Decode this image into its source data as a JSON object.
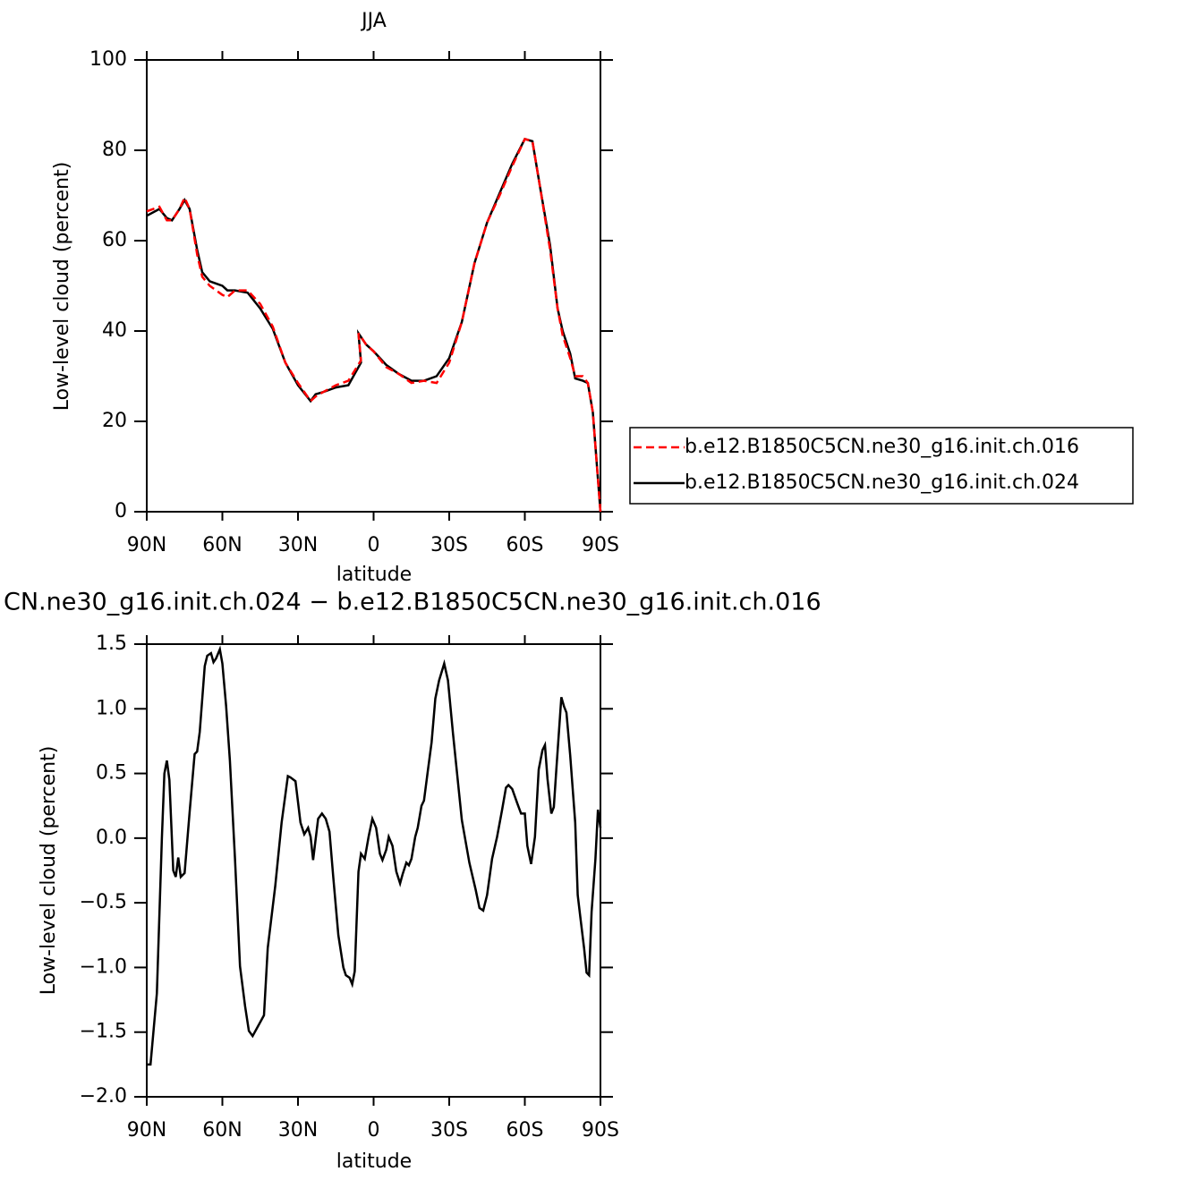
{
  "chart_data": [
    {
      "type": "line",
      "title": "JJA",
      "xlabel": "latitude",
      "ylabel": "Low-level cloud (percent)",
      "xlim": [
        90,
        -90
      ],
      "xticks": [
        {
          "value": 90,
          "label": "90N"
        },
        {
          "value": 60,
          "label": "60N"
        },
        {
          "value": 30,
          "label": "30N"
        },
        0,
        {
          "value": -30,
          "label": "30S"
        },
        {
          "value": -60,
          "label": "60S"
        },
        {
          "value": -90,
          "label": "90S"
        }
      ],
      "ylim": [
        0,
        100
      ],
      "yticks": [
        0,
        20,
        40,
        60,
        80,
        100
      ],
      "legend": "right",
      "x": [
        90,
        85,
        82,
        80,
        77,
        75,
        73,
        70,
        68,
        65,
        60,
        58,
        55,
        50,
        45,
        40,
        35,
        30,
        25,
        23,
        20,
        15,
        10,
        5,
        6,
        3,
        0,
        -5,
        -10,
        -15,
        -20,
        -25,
        -30,
        -35,
        -40,
        -45,
        -50,
        -55,
        -60,
        -63,
        -66,
        -70,
        -73,
        -75,
        -78,
        -80,
        -83,
        -85,
        -87,
        -90
      ],
      "series": [
        {
          "name": "b.e12.B1850C5CN.ne30_g16.init.ch.016",
          "color": "#ff0000",
          "line_style": "dashed",
          "values": [
            66.5,
            67.5,
            64.5,
            64.5,
            67,
            69.5,
            67,
            57,
            52,
            50,
            48,
            47.5,
            49,
            49,
            46,
            41,
            33,
            28.5,
            24.5,
            25.5,
            26.5,
            28,
            29,
            33.5,
            39.5,
            37,
            35.5,
            32,
            30.5,
            28.5,
            29,
            28.5,
            33,
            42,
            55,
            64,
            70,
            76.5,
            82.5,
            82,
            72,
            58,
            45,
            39,
            34,
            30,
            30,
            28.5,
            22,
            0
          ]
        },
        {
          "name": "b.e12.B1850C5CN.ne30_g16.init.ch.024",
          "color": "#000000",
          "line_style": "solid",
          "values": [
            65.5,
            67,
            65,
            64.5,
            67,
            69,
            67,
            58,
            53,
            51,
            50,
            49,
            49,
            48.5,
            45,
            40.5,
            33,
            28,
            24.5,
            26,
            26.5,
            27.5,
            28,
            33,
            39.5,
            37,
            35.5,
            32.5,
            30.5,
            29,
            29,
            30,
            34,
            42,
            55,
            64,
            70.5,
            77,
            82.5,
            82,
            72,
            59,
            45,
            40,
            35,
            29.5,
            29,
            28.5,
            22,
            0
          ]
        }
      ]
    },
    {
      "type": "line",
      "title": "CN.ne30_g16.init.ch.024 − b.e12.B1850C5CN.ne30_g16.init.ch.016",
      "xlabel": "latitude",
      "ylabel": "Low-level cloud (percent)",
      "xlim": [
        90,
        -90
      ],
      "xticks": [
        {
          "value": 90,
          "label": "90N"
        },
        {
          "value": 60,
          "label": "60N"
        },
        {
          "value": 30,
          "label": "30N"
        },
        0,
        {
          "value": -30,
          "label": "30S"
        },
        {
          "value": -60,
          "label": "60S"
        },
        {
          "value": -90,
          "label": "90S"
        }
      ],
      "ylim": [
        -2,
        1.5
      ],
      "yticks": [
        {
          "value": -2,
          "label": "−2.0"
        },
        {
          "value": -1.5,
          "label": "−1.5"
        },
        {
          "value": -1,
          "label": "−1.0"
        },
        {
          "value": -0.5,
          "label": "−0.5"
        },
        {
          "value": 0,
          "label": "0.0"
        },
        0.5,
        {
          "value": 1,
          "label": "1.0"
        },
        1.5
      ],
      "x": [
        90,
        88.5,
        86,
        84,
        83,
        82,
        81,
        79.5,
        78.5,
        77.5,
        76.5,
        75,
        73,
        71,
        70,
        69,
        67,
        66,
        64.5,
        63.5,
        62.5,
        61,
        60,
        58.5,
        57,
        55,
        53,
        51,
        49.5,
        48,
        46,
        43.5,
        42,
        39,
        36.5,
        34,
        33,
        31,
        29,
        27.5,
        26,
        25,
        24,
        22,
        20.5,
        19,
        17.5,
        16,
        14,
        12,
        11,
        9.5,
        8.5,
        7.5,
        6,
        5,
        3.5,
        2,
        0.5,
        -1,
        -2.5,
        -3.5,
        -5,
        -6,
        -7.5,
        -9,
        -10.5,
        -11.5,
        -13,
        -14,
        -15,
        -16.5,
        -17.5,
        -19,
        -20,
        -21.5,
        -23,
        -24.5,
        -26,
        -28,
        -29.5,
        -31.5,
        -35,
        -38,
        -40.5,
        -42,
        -43.5,
        -45,
        -47,
        -49,
        -51,
        -52.5,
        -53.5,
        -55,
        -57,
        -58.5,
        -60,
        -61,
        -62.5,
        -64,
        -65.5,
        -67,
        -68,
        -69,
        -70.5,
        -71.5,
        -72.5,
        -74,
        -74.5,
        -75.5,
        -76.5,
        -78,
        -80,
        -81,
        -82,
        -83.5,
        -84.5,
        -85.5,
        -86.5,
        -88,
        -89,
        -90
      ],
      "series": [
        {
          "color": "#000000",
          "line_style": "solid",
          "values": [
            -1.75,
            -1.75,
            -1.2,
            0.0,
            0.5,
            0.6,
            0.45,
            -0.25,
            -0.3,
            -0.15,
            -0.3,
            -0.27,
            0.2,
            0.65,
            0.67,
            0.82,
            1.33,
            1.41,
            1.43,
            1.36,
            1.39,
            1.46,
            1.35,
            1.02,
            0.6,
            -0.16,
            -0.99,
            -1.3,
            -1.49,
            -1.53,
            -1.46,
            -1.37,
            -0.85,
            -0.37,
            0.12,
            0.48,
            0.47,
            0.44,
            0.12,
            0.03,
            0.08,
            0.01,
            -0.17,
            0.15,
            0.19,
            0.15,
            0.05,
            -0.3,
            -0.75,
            -1.0,
            -1.06,
            -1.08,
            -1.13,
            -1.03,
            -0.26,
            -0.12,
            -0.16,
            0.01,
            0.15,
            0.08,
            -0.12,
            -0.17,
            -0.09,
            0.01,
            -0.06,
            -0.26,
            -0.35,
            -0.28,
            -0.19,
            -0.21,
            -0.16,
            0.01,
            0.08,
            0.25,
            0.29,
            0.52,
            0.74,
            1.08,
            1.22,
            1.35,
            1.22,
            0.81,
            0.14,
            -0.19,
            -0.4,
            -0.54,
            -0.56,
            -0.44,
            -0.16,
            0.01,
            0.22,
            0.39,
            0.41,
            0.38,
            0.27,
            0.19,
            0.19,
            -0.06,
            -0.2,
            0.01,
            0.53,
            0.68,
            0.72,
            0.46,
            0.19,
            0.24,
            0.53,
            0.95,
            1.09,
            1.02,
            0.97,
            0.64,
            0.12,
            -0.44,
            -0.61,
            -0.85,
            -1.04,
            -1.06,
            -0.57,
            -0.16,
            0.22,
            0.08
          ]
        }
      ]
    }
  ]
}
